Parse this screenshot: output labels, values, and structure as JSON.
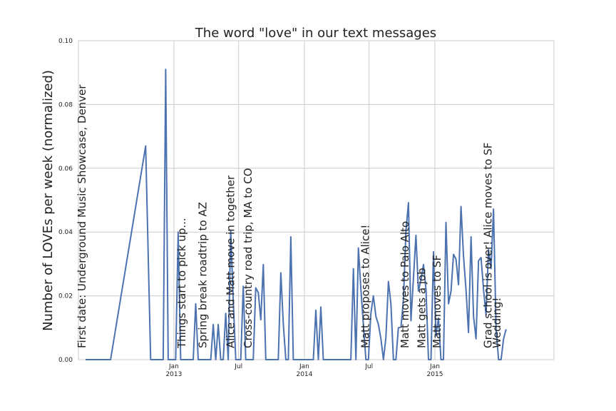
{
  "chart_data": {
    "type": "line",
    "title": "The word \"love\" in our text messages",
    "xlabel": "",
    "ylabel": "Number of LOVEs per week (normalized)",
    "ylim": [
      0,
      0.1
    ],
    "xlim": [
      "2012-04-09",
      "2015-11-30"
    ],
    "grid": true,
    "yticks": [
      "0.00",
      "0.02",
      "0.04",
      "0.06",
      "0.08",
      "0.10"
    ],
    "xticks": [
      {
        "date": "2013-01-01",
        "label": "Jan",
        "sublabel": "2013"
      },
      {
        "date": "2013-07-01",
        "label": "Jul",
        "sublabel": ""
      },
      {
        "date": "2014-01-01",
        "label": "Jan",
        "sublabel": "2014"
      },
      {
        "date": "2014-07-01",
        "label": "Jul",
        "sublabel": ""
      },
      {
        "date": "2015-01-01",
        "label": "Jan",
        "sublabel": "2015"
      }
    ],
    "series": [
      {
        "color": "#4c72b0",
        "points": [
          [
            "2012-04-29",
            0
          ],
          [
            "2012-05-13",
            0
          ],
          [
            "2012-06-24",
            0
          ],
          [
            "2012-07-08",
            0
          ],
          [
            "2012-10-28",
            0
          ],
          [
            "2012-11-04",
            0
          ],
          [
            "2012-11-11",
            0
          ],
          [
            "2012-11-18",
            0
          ],
          [
            "2012-11-25",
            0
          ],
          [
            "2012-10-14",
            0.067
          ],
          [
            "2012-12-02",
            0
          ],
          [
            "2012-12-09",
            0.091
          ],
          [
            "2012-12-16",
            0
          ],
          [
            "2012-12-23",
            0
          ],
          [
            "2012-12-30",
            0
          ],
          [
            "2013-01-06",
            0
          ],
          [
            "2013-01-13",
            0.04
          ],
          [
            "2013-01-20",
            0
          ],
          [
            "2013-01-27",
            0
          ],
          [
            "2013-02-03",
            0
          ],
          [
            "2013-02-10",
            0
          ],
          [
            "2013-02-17",
            0
          ],
          [
            "2013-02-24",
            0
          ],
          [
            "2013-03-03",
            0.0175
          ],
          [
            "2013-03-10",
            0
          ],
          [
            "2013-03-17",
            0
          ],
          [
            "2013-03-24",
            0
          ],
          [
            "2013-03-31",
            0
          ],
          [
            "2013-04-07",
            0
          ],
          [
            "2013-04-14",
            0
          ],
          [
            "2013-04-21",
            0.011
          ],
          [
            "2013-04-28",
            0
          ],
          [
            "2013-05-05",
            0.011
          ],
          [
            "2013-05-12",
            0
          ],
          [
            "2013-05-19",
            0
          ],
          [
            "2013-05-26",
            0.0145
          ],
          [
            "2013-06-02",
            0
          ],
          [
            "2013-06-09",
            0.0405
          ],
          [
            "2013-06-16",
            0.018
          ],
          [
            "2013-06-23",
            0
          ],
          [
            "2013-06-30",
            0
          ],
          [
            "2013-07-07",
            0
          ],
          [
            "2013-07-14",
            0.023
          ],
          [
            "2013-07-21",
            0
          ],
          [
            "2013-07-28",
            0
          ],
          [
            "2013-08-04",
            0
          ],
          [
            "2013-08-11",
            0
          ],
          [
            "2013-08-18",
            0.0225
          ],
          [
            "2013-08-25",
            0.021
          ],
          [
            "2013-09-01",
            0.0125
          ],
          [
            "2013-09-08",
            0.0298
          ],
          [
            "2013-09-15",
            0
          ],
          [
            "2013-09-22",
            0
          ],
          [
            "2013-09-29",
            0
          ],
          [
            "2013-10-06",
            0
          ],
          [
            "2013-10-13",
            0
          ],
          [
            "2013-10-20",
            0
          ],
          [
            "2013-10-27",
            0.0272
          ],
          [
            "2013-11-03",
            0.011
          ],
          [
            "2013-11-10",
            0
          ],
          [
            "2013-11-17",
            0
          ],
          [
            "2013-11-24",
            0.0385
          ],
          [
            "2013-12-01",
            0
          ],
          [
            "2013-12-08",
            0
          ],
          [
            "2013-12-15",
            0
          ],
          [
            "2013-12-22",
            0
          ],
          [
            "2013-12-29",
            0
          ],
          [
            "2014-01-05",
            0
          ],
          [
            "2014-01-12",
            0
          ],
          [
            "2014-01-19",
            0
          ],
          [
            "2014-01-26",
            0
          ],
          [
            "2014-02-02",
            0.0155
          ],
          [
            "2014-02-09",
            0
          ],
          [
            "2014-02-16",
            0.0165
          ],
          [
            "2014-02-23",
            0
          ],
          [
            "2014-03-02",
            0
          ],
          [
            "2014-03-09",
            0
          ],
          [
            "2014-03-16",
            0
          ],
          [
            "2014-03-23",
            0
          ],
          [
            "2014-03-30",
            0
          ],
          [
            "2014-04-06",
            0
          ],
          [
            "2014-04-13",
            0
          ],
          [
            "2014-04-20",
            0
          ],
          [
            "2014-04-27",
            0
          ],
          [
            "2014-05-04",
            0
          ],
          [
            "2014-05-11",
            0
          ],
          [
            "2014-05-18",
            0.0285
          ],
          [
            "2014-05-25",
            0
          ],
          [
            "2014-06-01",
            0.035
          ],
          [
            "2014-06-08",
            0.022
          ],
          [
            "2014-06-15",
            0.011
          ],
          [
            "2014-06-22",
            0
          ],
          [
            "2014-06-29",
            0
          ],
          [
            "2014-07-06",
            0.0145
          ],
          [
            "2014-07-13",
            0.02
          ],
          [
            "2014-07-20",
            0.0135
          ],
          [
            "2014-07-27",
            0.011
          ],
          [
            "2014-08-03",
            0.0065
          ],
          [
            "2014-08-10",
            0
          ],
          [
            "2014-08-17",
            0.007
          ],
          [
            "2014-08-24",
            0.0245
          ],
          [
            "2014-08-31",
            0.0175
          ],
          [
            "2014-09-07",
            0
          ],
          [
            "2014-09-14",
            0
          ],
          [
            "2014-09-21",
            0.01
          ],
          [
            "2014-09-28",
            0.0102
          ],
          [
            "2014-10-05",
            0.019
          ],
          [
            "2014-10-12",
            0.0405
          ],
          [
            "2014-10-19",
            0.0492
          ],
          [
            "2014-10-26",
            0.0122
          ],
          [
            "2014-11-02",
            0.0255
          ],
          [
            "2014-11-09",
            0.039
          ],
          [
            "2014-11-16",
            0.0215
          ],
          [
            "2014-11-23",
            0.025
          ],
          [
            "2014-11-30",
            0.0298
          ],
          [
            "2014-12-07",
            0.022
          ],
          [
            "2014-12-14",
            0
          ],
          [
            "2014-12-21",
            0
          ],
          [
            "2014-12-28",
            0.0338
          ],
          [
            "2015-01-04",
            0.0075
          ],
          [
            "2015-01-11",
            0.013
          ],
          [
            "2015-01-18",
            0
          ],
          [
            "2015-01-25",
            0
          ],
          [
            "2015-02-01",
            0.043
          ],
          [
            "2015-02-08",
            0.0175
          ],
          [
            "2015-02-15",
            0.0215
          ],
          [
            "2015-02-22",
            0.033
          ],
          [
            "2015-03-01",
            0.0315
          ],
          [
            "2015-03-08",
            0.0235
          ],
          [
            "2015-03-15",
            0.048
          ],
          [
            "2015-03-22",
            0.0325
          ],
          [
            "2015-03-29",
            0.022
          ],
          [
            "2015-04-05",
            0.0085
          ],
          [
            "2015-04-12",
            0.0385
          ],
          [
            "2015-04-19",
            0.0135
          ],
          [
            "2015-04-26",
            0.0065
          ],
          [
            "2015-05-03",
            0.031
          ],
          [
            "2015-05-10",
            0.032
          ],
          [
            "2015-05-17",
            0.022
          ],
          [
            "2015-05-24",
            0.014
          ],
          [
            "2015-05-31",
            0.0345
          ],
          [
            "2015-06-07",
            0.0285
          ],
          [
            "2015-06-14",
            0.0472
          ],
          [
            "2015-06-21",
            0.0095
          ],
          [
            "2015-06-28",
            0
          ],
          [
            "2015-07-05",
            0
          ],
          [
            "2015-07-12",
            0.0065
          ],
          [
            "2015-07-19",
            0.0095
          ]
        ]
      }
    ],
    "annotations": [
      {
        "date": "2012-04-17",
        "text": "First date: Underground Music Showcase, Denver"
      },
      {
        "date": "2013-01-21",
        "text": "Things start to pick up..."
      },
      {
        "date": "2013-03-21",
        "text": "Spring break roadtrip to AZ"
      },
      {
        "date": "2013-06-07",
        "text": "Alice and Matt move in together"
      },
      {
        "date": "2013-07-26",
        "text": "Cross-country road trip, MA to CO"
      },
      {
        "date": "2014-06-19",
        "text": "Matt proposes to Alice!"
      },
      {
        "date": "2014-10-07",
        "text": "Matt moves to Palo Alto"
      },
      {
        "date": "2014-11-23",
        "text": "Matt gets a job"
      },
      {
        "date": "2015-01-05",
        "text": "Matt moves to SF"
      },
      {
        "date": "2015-05-28",
        "text": "Grad school is over! Alice moves to SF"
      },
      {
        "date": "2015-06-21",
        "text": "Wedding!"
      }
    ]
  }
}
